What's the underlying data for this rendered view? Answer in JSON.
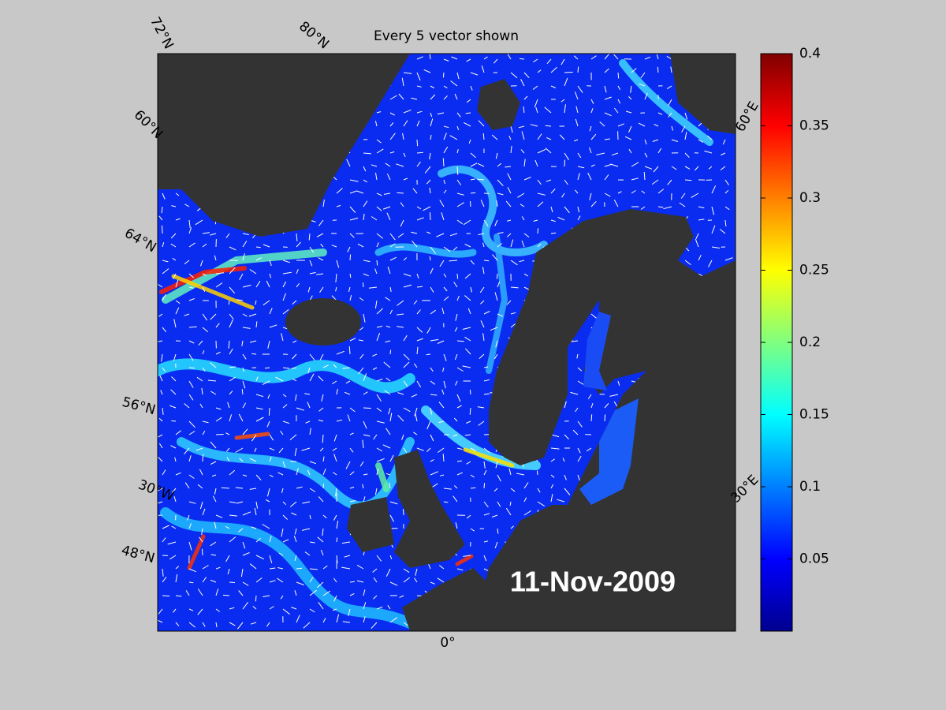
{
  "title": "Every 5 vector shown",
  "date_label": "11-Nov-2009",
  "graticule_labels": [
    "72°N",
    "80°N",
    "60°N",
    "64°N",
    "56°N",
    "30°W",
    "48°N",
    "0°",
    "30°E",
    "60°E"
  ],
  "colorbar": {
    "lim": [
      0,
      0.4
    ],
    "ticks": [
      0.05,
      0.1,
      0.15,
      0.2,
      0.25,
      0.3,
      0.35,
      0.4
    ]
  }
}
